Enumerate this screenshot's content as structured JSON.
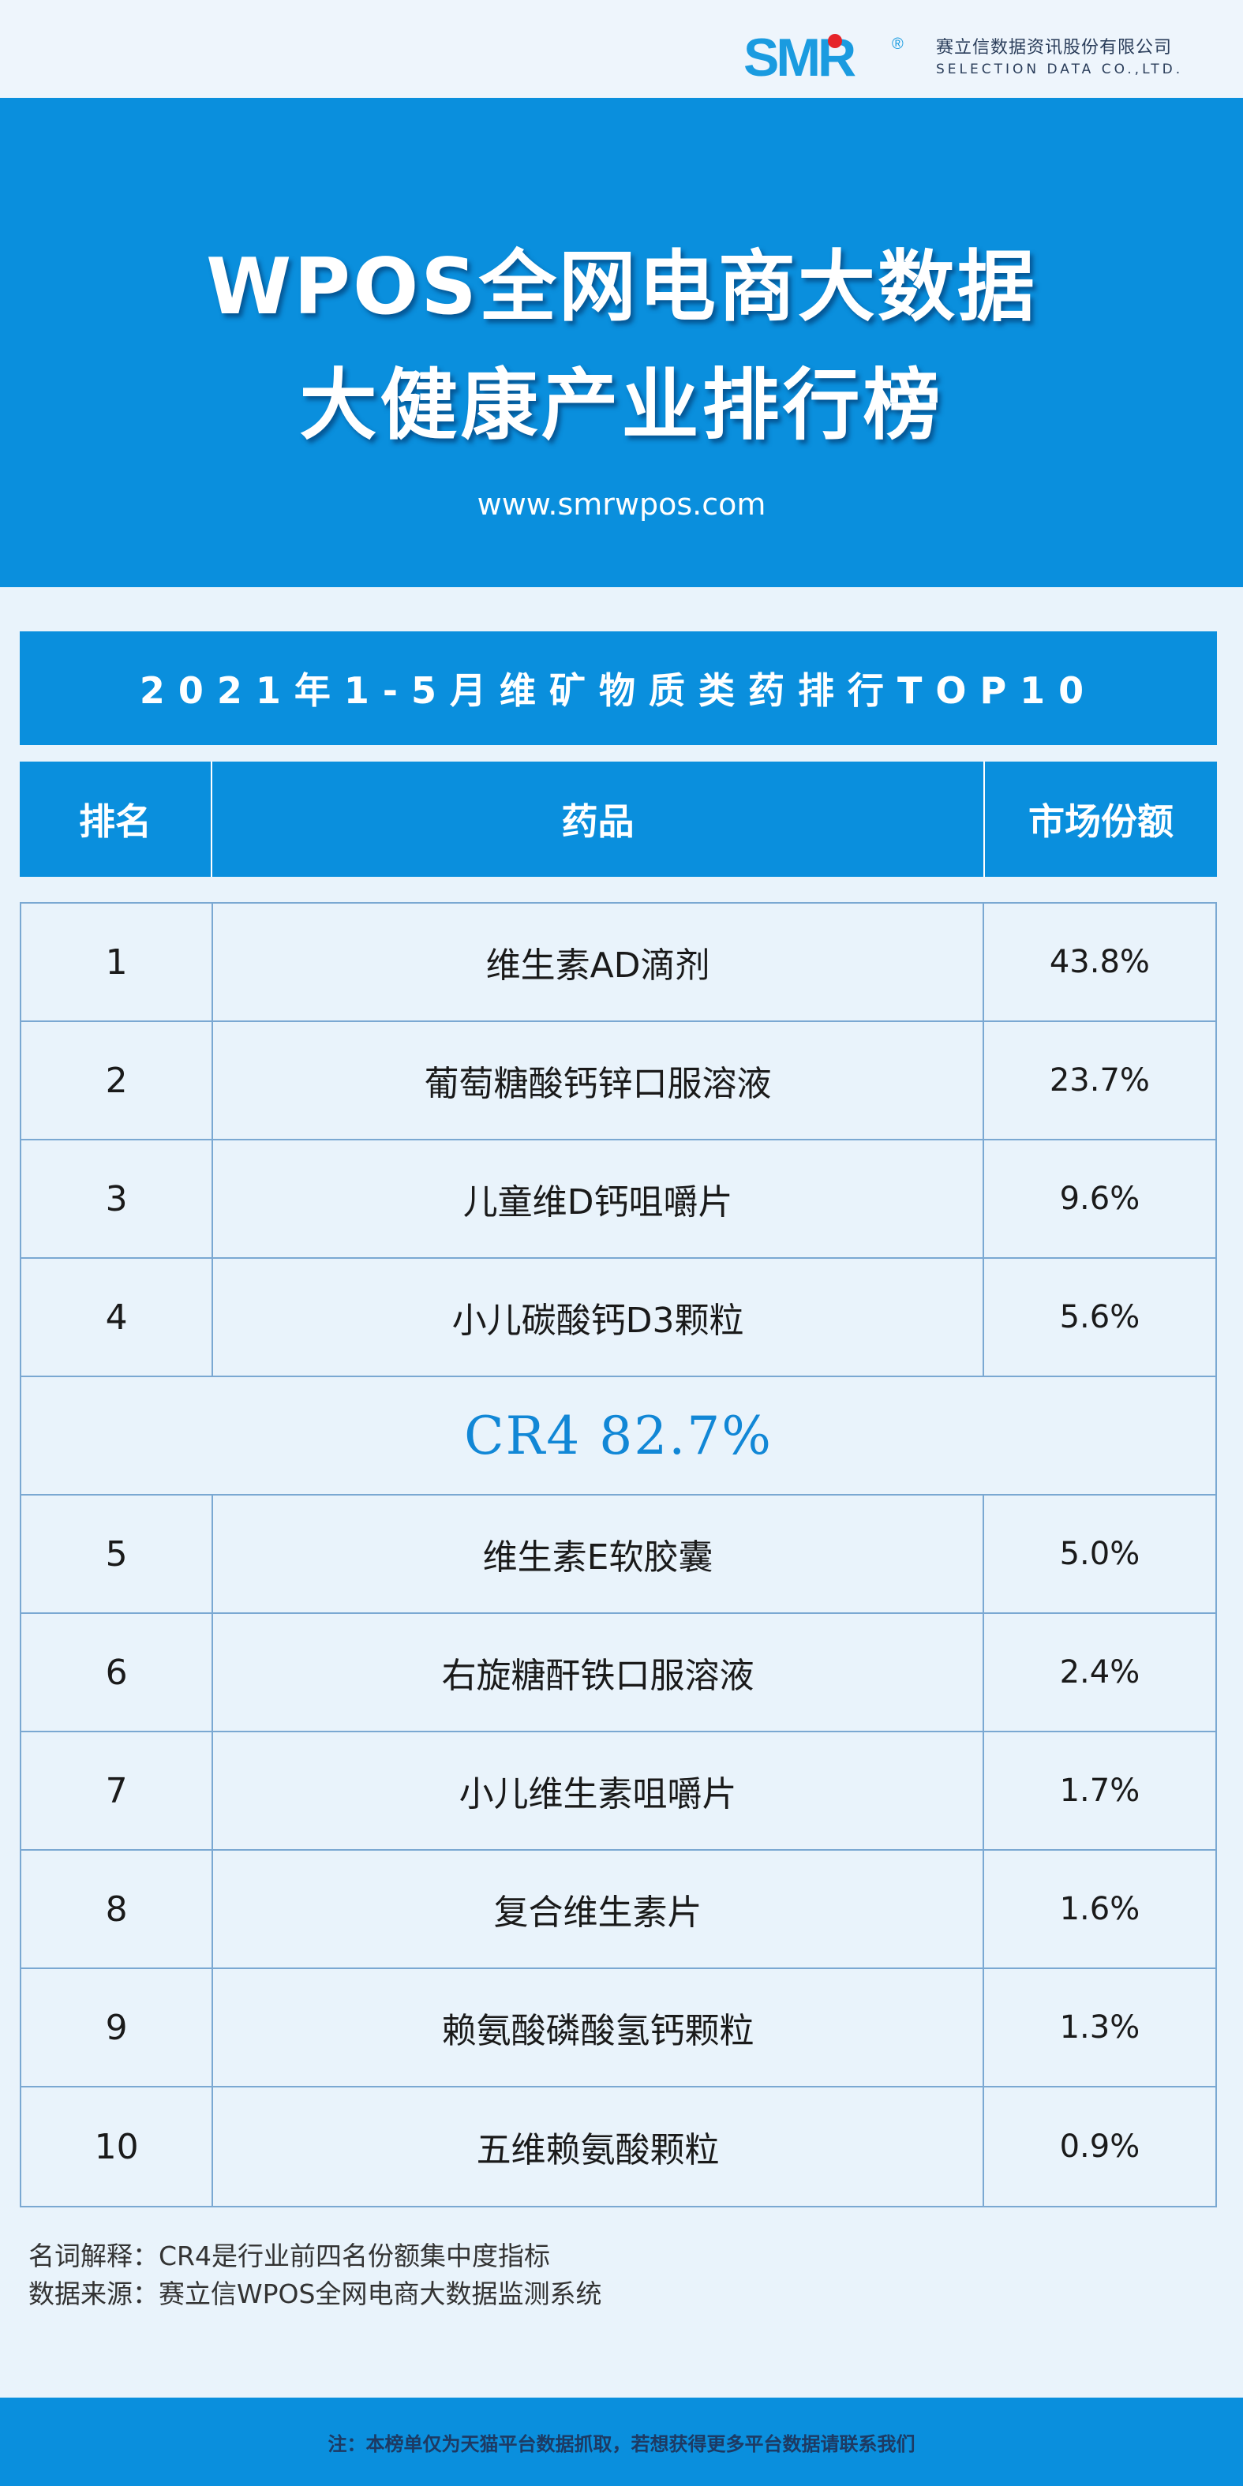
{
  "brand": {
    "logo_text": "SMR",
    "registered_mark": "®",
    "company_cn": "赛立信数据资讯股份有限公司",
    "company_en": "SELECTION DATA CO.,LTD.",
    "primary_color": "#0a8fdd",
    "accent_red": "#e6242a"
  },
  "hero": {
    "line1": "WPOS全网电商大数据",
    "line2": "大健康产业排行榜",
    "url": "www.smrwpos.com"
  },
  "table": {
    "title": "2021年1-5月维矿物质类药排行TOP10",
    "headers": [
      "排名",
      "药品",
      "市场份额"
    ],
    "rows_top": [
      {
        "rank": "1",
        "name": "维生素AD滴剂",
        "share": "43.8%"
      },
      {
        "rank": "2",
        "name": "葡萄糖酸钙锌口服溶液",
        "share": "23.7%"
      },
      {
        "rank": "3",
        "name": "儿童维D钙咀嚼片",
        "share": "9.6%"
      },
      {
        "rank": "4",
        "name": "小儿碳酸钙D3颗粒",
        "share": "5.6%"
      }
    ],
    "cr4": "CR4 82.7%",
    "rows_rest": [
      {
        "rank": "5",
        "name": "维生素E软胶囊",
        "share": "5.0%"
      },
      {
        "rank": "6",
        "name": "右旋糖酐铁口服溶液",
        "share": "2.4%"
      },
      {
        "rank": "7",
        "name": "小儿维生素咀嚼片",
        "share": "1.7%"
      },
      {
        "rank": "8",
        "name": "复合维生素片",
        "share": "1.6%"
      },
      {
        "rank": "9",
        "name": "赖氨酸磷酸氢钙颗粒",
        "share": "1.3%"
      },
      {
        "rank": "10",
        "name": "五维赖氨酸颗粒",
        "share": "0.9%"
      }
    ]
  },
  "notes": {
    "definition": "名词解释：CR4是行业前四名份额集中度指标",
    "source": "数据来源：赛立信WPOS全网电商大数据监测系统"
  },
  "footer": {
    "text": "注：本榜单仅为天猫平台数据抓取，若想获得更多平台数据请联系我们"
  }
}
